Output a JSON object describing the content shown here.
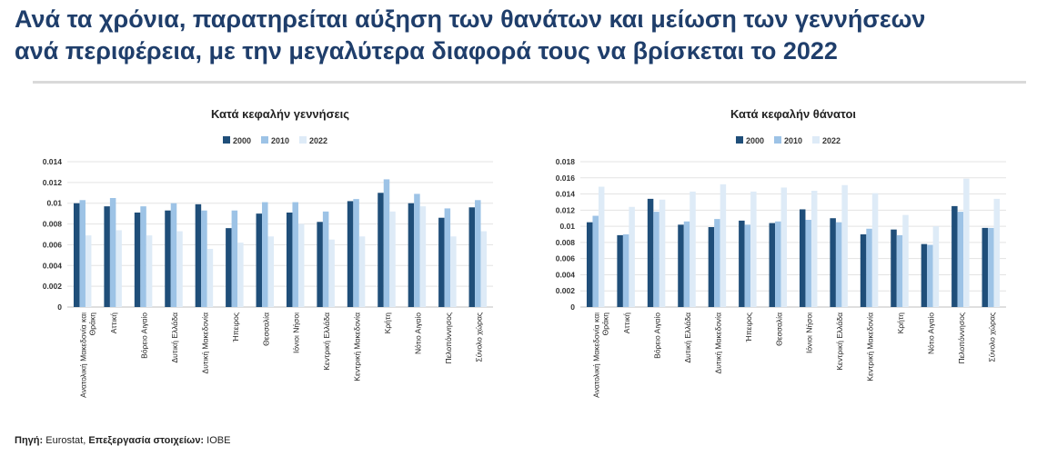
{
  "headline": {
    "line1": "Ανά τα χρόνια, παρατηρείται αύξηση των θανάτων και μείωση των γεννήσεων",
    "line2": "ανά περιφέρεια, με την μεγαλύτερα διαφορά τους να βρίσκεται το 2022"
  },
  "source": {
    "label1": "Πηγή:",
    "text1": "Eurostat,",
    "label2": "Επεξεργασία στοιχείων:",
    "text2": "IOBE"
  },
  "colors": {
    "2000": "#1f4e79",
    "2010": "#9dc3e6",
    "2022": "#deebf7"
  },
  "chart_data": [
    {
      "type": "bar",
      "title": "Κατά κεφαλήν γεννήσεις",
      "legend": "top",
      "grid": true,
      "categories": [
        "Ανατολική Μακεδονία και Θράκη",
        "Αττική",
        "Βόρειο Αιγαίο",
        "Δυτική Ελλάδα",
        "Δυτική Μακεδονία",
        "Ήπειρος",
        "Θεσσαλία",
        "Ιόνιοι Νήσοι",
        "Κεντρική Ελλάδα",
        "Κεντρική Μακεδονία",
        "Κρήτη",
        "Νότιο Αιγαίο",
        "Πελοπόννησος",
        "Σύνολο χώρας"
      ],
      "series": [
        {
          "name": "2000",
          "values": [
            0.01,
            0.0097,
            0.0091,
            0.0093,
            0.0099,
            0.0076,
            0.009,
            0.0091,
            0.0082,
            0.0102,
            0.011,
            0.01,
            0.0086,
            0.0096
          ]
        },
        {
          "name": "2010",
          "values": [
            0.0103,
            0.0105,
            0.0097,
            0.01,
            0.0093,
            0.0093,
            0.0101,
            0.0101,
            0.0092,
            0.0104,
            0.0123,
            0.0109,
            0.0095,
            0.0103
          ]
        },
        {
          "name": "2022",
          "values": [
            0.0069,
            0.0074,
            0.0069,
            0.0073,
            0.0056,
            0.0062,
            0.0068,
            0.008,
            0.0065,
            0.0068,
            0.0092,
            0.0097,
            0.0068,
            0.0073
          ]
        }
      ],
      "ylim": [
        0,
        0.014
      ],
      "yticks": [
        "0",
        "0.002",
        "0.004",
        "0.006",
        "0.008",
        "0.01",
        "0.012",
        "0.014"
      ]
    },
    {
      "type": "bar",
      "title": "Κατά κεφαλήν θάνατοι",
      "legend": "top",
      "grid": true,
      "categories": [
        "Ανατολική Μακεδονία και Θράκη",
        "Αττική",
        "Βόρειο Αιγαίο",
        "Δυτική Ελλάδα",
        "Δυτική Μακεδονία",
        "Ήπειρος",
        "Θεσσαλία",
        "Ιόνιοι Νήσοι",
        "Κεντρική Ελλάδα",
        "Κεντρική Μακεδονία",
        "Κρήτη",
        "Νότιο Αιγαίο",
        "Πελοπόννησος",
        "Σύνολο χώρας"
      ],
      "series": [
        {
          "name": "2000",
          "values": [
            0.0105,
            0.0089,
            0.0134,
            0.0102,
            0.0099,
            0.0107,
            0.0104,
            0.0121,
            0.011,
            0.009,
            0.0096,
            0.0078,
            0.0125,
            0.0098
          ]
        },
        {
          "name": "2010",
          "values": [
            0.0113,
            0.009,
            0.0118,
            0.0106,
            0.0109,
            0.0102,
            0.0106,
            0.0108,
            0.0105,
            0.0097,
            0.0089,
            0.0077,
            0.0118,
            0.0098
          ]
        },
        {
          "name": "2022",
          "values": [
            0.0149,
            0.0124,
            0.0133,
            0.0143,
            0.0152,
            0.0143,
            0.0148,
            0.0144,
            0.0151,
            0.0141,
            0.0114,
            0.01,
            0.0159,
            0.0134
          ]
        }
      ],
      "ylim": [
        0,
        0.018
      ],
      "yticks": [
        "0",
        "0.002",
        "0.004",
        "0.006",
        "0.008",
        "0.01",
        "0.012",
        "0.014",
        "0.016",
        "0.018"
      ]
    }
  ]
}
